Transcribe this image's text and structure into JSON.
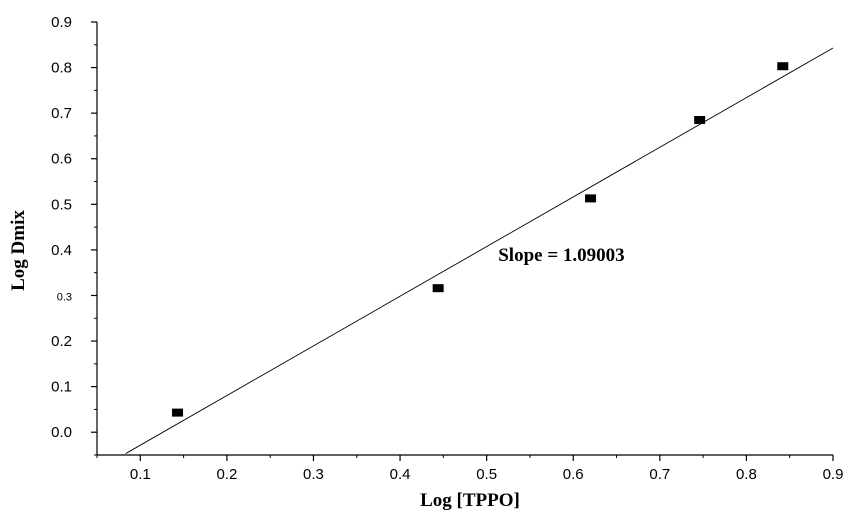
{
  "chart_data": {
    "type": "scatter",
    "xlabel": "Log [TPPO]",
    "ylabel": "Log Dmix",
    "xlim": [
      0.05,
      0.9
    ],
    "ylim": [
      -0.05,
      0.9
    ],
    "x_ticks": [
      {
        "value": 0.1,
        "label": "0.1"
      },
      {
        "value": 0.2,
        "label": "0.2"
      },
      {
        "value": 0.3,
        "label": "0.3"
      },
      {
        "value": 0.4,
        "label": "0.4"
      },
      {
        "value": 0.5,
        "label": "0.5"
      },
      {
        "value": 0.6,
        "label": "0.6"
      },
      {
        "value": 0.7,
        "label": "0.7"
      },
      {
        "value": 0.8,
        "label": "0.8"
      },
      {
        "value": 0.9,
        "label": "0.9"
      }
    ],
    "y_ticks": [
      {
        "value": 0.0,
        "label": "0.0"
      },
      {
        "value": 0.1,
        "label": "0.1"
      },
      {
        "value": 0.2,
        "label": "0.2"
      },
      {
        "value": 0.3,
        "label": "0.3"
      },
      {
        "value": 0.4,
        "label": "0.4"
      },
      {
        "value": 0.5,
        "label": "0.5"
      },
      {
        "value": 0.6,
        "label": "0.6"
      },
      {
        "value": 0.7,
        "label": "0.7"
      },
      {
        "value": 0.8,
        "label": "0.8"
      },
      {
        "value": 0.9,
        "label": "0.9"
      }
    ],
    "points": [
      {
        "x": 0.143,
        "y": 0.043
      },
      {
        "x": 0.444,
        "y": 0.316
      },
      {
        "x": 0.62,
        "y": 0.513
      },
      {
        "x": 0.746,
        "y": 0.685
      },
      {
        "x": 0.842,
        "y": 0.803
      }
    ],
    "fit_line": {
      "x": [
        0.083,
        0.9
      ],
      "y": [
        -0.047,
        0.843
      ]
    },
    "annotation": {
      "text": "Slope = 1.09003",
      "x": 0.6,
      "y": 0.4
    },
    "grid": false,
    "marker_color": "#000000",
    "line_color": "#000000"
  }
}
